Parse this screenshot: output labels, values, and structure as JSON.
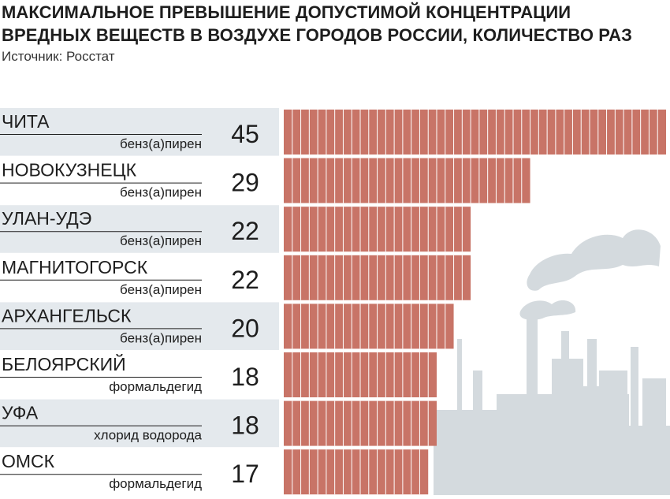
{
  "title_line1": "МАКСИМАЛЬНОЕ ПРЕВЫШЕНИЕ ДОПУСТИМОЙ КОНЦЕНТРАЦИИ",
  "title_line2": "ВРЕДНЫХ ВЕЩЕСТВ В ВОЗДУХЕ ГОРОДОВ РОССИИ, КОЛИЧЕСТВО РАЗ",
  "source": "Источник: Росстат",
  "colors": {
    "bar": "#c87467",
    "bar_divider": "#ffffff",
    "row_band": "#e4e9ed",
    "factory_silhouette": "#d4dade",
    "rule": "#1e1e1e"
  },
  "chart_data": {
    "type": "bar",
    "orientation": "horizontal",
    "title": "МАКСИМАЛЬНОЕ ПРЕВЫШЕНИЕ ДОПУСТИМОЙ КОНЦЕНТРАЦИИ ВРЕДНЫХ ВЕЩЕСТВ В ВОЗДУХЕ ГОРОДОВ РОССИИ, КОЛИЧЕСТВО РАЗ",
    "xlim": [
      0,
      45
    ],
    "grid": false,
    "categories": [
      "ЧИТА",
      "НОВОКУЗНЕЦК",
      "УЛАН-УДЭ",
      "МАГНИТОГОРСК",
      "АРХАНГЕЛЬСК",
      "БЕЛОЯРСКИЙ",
      "УФА",
      "ОМСК"
    ],
    "substances": [
      "бенз(а)пирен",
      "бенз(а)пирен",
      "бенз(а)пирен",
      "бенз(а)пирен",
      "бенз(а)пирен",
      "формальдегид",
      "хлорид водорода",
      "формальдегид"
    ],
    "values": [
      45,
      29,
      22,
      22,
      20,
      18,
      18,
      17
    ],
    "value_labels": [
      "45",
      "29",
      "22",
      "22",
      "20",
      "18",
      "18",
      "17"
    ]
  }
}
